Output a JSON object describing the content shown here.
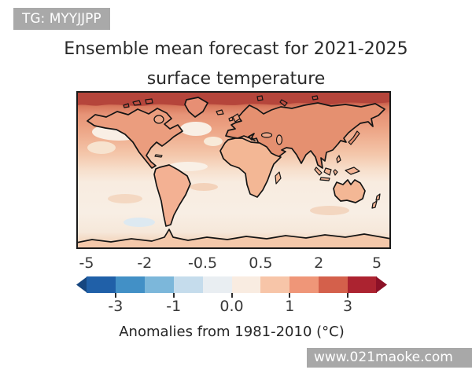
{
  "badge": {
    "label": "TG: MYYJJPP"
  },
  "title": {
    "line1": "Ensemble mean forecast for 2021-2025",
    "line2": "surface temperature"
  },
  "watermark": {
    "label": "www.021maoke.com"
  },
  "colors": {
    "badge_bg": "#a9a9a9",
    "watermark_bg": "#a8a8a8",
    "map_border": "#1a1a1a",
    "text": "#262626"
  },
  "chart_data": {
    "type": "heatmap",
    "title": "Ensemble mean forecast for 2021-2025 surface temperature",
    "projection": "global equirectangular world map with black coastlines",
    "colorbar": {
      "label": "Anomalies from 1981-2010 (°C)",
      "orientation": "horizontal",
      "extend": "both",
      "boundaries": [
        -5,
        -3,
        -2,
        -1,
        -0.5,
        0.0,
        0.5,
        1,
        2,
        3,
        5
      ],
      "tick_labels_above": [
        "-5",
        "-2",
        "-0.5",
        "0.5",
        "2",
        "5"
      ],
      "tick_labels_below": [
        "-3",
        "-1",
        "0.0",
        "1",
        "3"
      ],
      "segment_colors": [
        "#2060a8",
        "#4290c6",
        "#7cb7da",
        "#c5dcec",
        "#e9eef2",
        "#f9ece1",
        "#f7c5a8",
        "#ef9678",
        "#d4604b",
        "#ac2330"
      ],
      "arrow_left_color": "#16467f",
      "arrow_right_color": "#8c1127"
    },
    "map_regions": [
      {
        "region": "Arctic ocean band",
        "anomaly_c": "3 to 5"
      },
      {
        "region": "Siberia, Canada, Greenland, northern Eurasia",
        "anomaly_c": "1 to 2"
      },
      {
        "region": "Northern mid-latitude oceans",
        "anomaly_c": "0.5 to 1"
      },
      {
        "region": "North Pacific and North Atlantic cool patches",
        "anomaly_c": "0 to 0.5"
      },
      {
        "region": "Tropical and southern hemisphere oceans",
        "anomaly_c": "0 to 0.5"
      },
      {
        "region": "South America, Africa, Australia, Antarctica coast",
        "anomaly_c": "0.5 to 1"
      },
      {
        "region": "Small Southern Ocean patch (south-east Pacific)",
        "anomaly_c": "-0.5 to 0"
      }
    ]
  }
}
